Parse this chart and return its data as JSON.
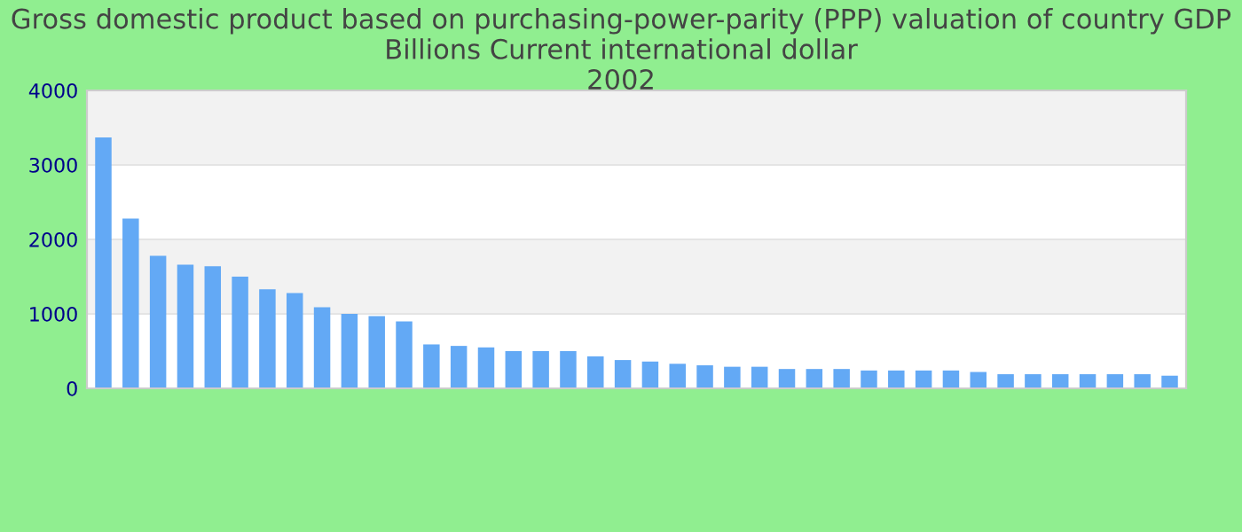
{
  "chart_data": {
    "type": "bar",
    "title": "Gross domestic product based on purchasing-power-parity (PPP) valuation of country GDP Billions Current international dollar\n2002",
    "categories": [
      null,
      null,
      null,
      null,
      null,
      null,
      null,
      null,
      null,
      null,
      null,
      null,
      null,
      null,
      null,
      null,
      null,
      null,
      null,
      null,
      null,
      null,
      null,
      null,
      null,
      null,
      null,
      null,
      null,
      null,
      null,
      null,
      null,
      null,
      null,
      null,
      null,
      null,
      null,
      null
    ],
    "values": [
      3370,
      2280,
      1780,
      1660,
      1640,
      1500,
      1330,
      1280,
      1090,
      1000,
      970,
      900,
      590,
      570,
      550,
      500,
      500,
      500,
      430,
      380,
      360,
      330,
      310,
      290,
      290,
      260,
      260,
      260,
      240,
      240,
      240,
      240,
      220,
      190,
      190,
      190,
      190,
      190,
      190,
      170
    ],
    "color": "#63a9f5",
    "ylim": [
      0,
      4000
    ],
    "yticks": [
      0,
      1000,
      2000,
      3000,
      4000
    ],
    "grid": "y"
  }
}
